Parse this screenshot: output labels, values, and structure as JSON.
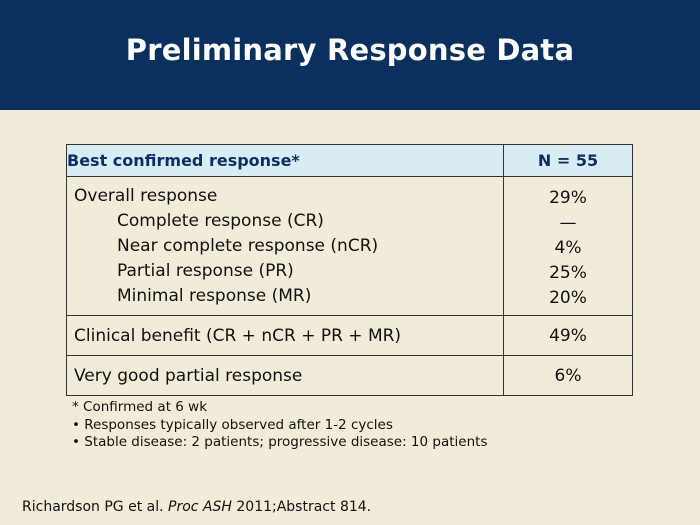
{
  "slide": {
    "title": "Preliminary Response Data"
  },
  "table": {
    "header": {
      "label": "Best confirmed response*",
      "value": "N = 55"
    },
    "overall": {
      "label": "Overall response",
      "value": "29%",
      "subrows": [
        {
          "label": "Complete response (CR)",
          "value": "—"
        },
        {
          "label": "Near complete response (nCR)",
          "value": "4%"
        },
        {
          "label": "Partial response (PR)",
          "value": "25%"
        },
        {
          "label": "Minimal response (MR)",
          "value": "20%"
        }
      ]
    },
    "clinical_benefit": {
      "label": "Clinical benefit (CR + nCR + PR + MR)",
      "value": "49%"
    },
    "vgpr": {
      "label": "Very good partial response",
      "value": "6%"
    }
  },
  "notes": {
    "footnote": "* Confirmed at 6 wk",
    "bullets": [
      "• Responses typically observed after 1-2 cycles",
      "• Stable disease: 2 patients; progressive disease: 10 patients"
    ]
  },
  "citation": {
    "authors": "Richardson PG et al.",
    "journal": "Proc ASH",
    "details": "2011;Abstract 814."
  }
}
